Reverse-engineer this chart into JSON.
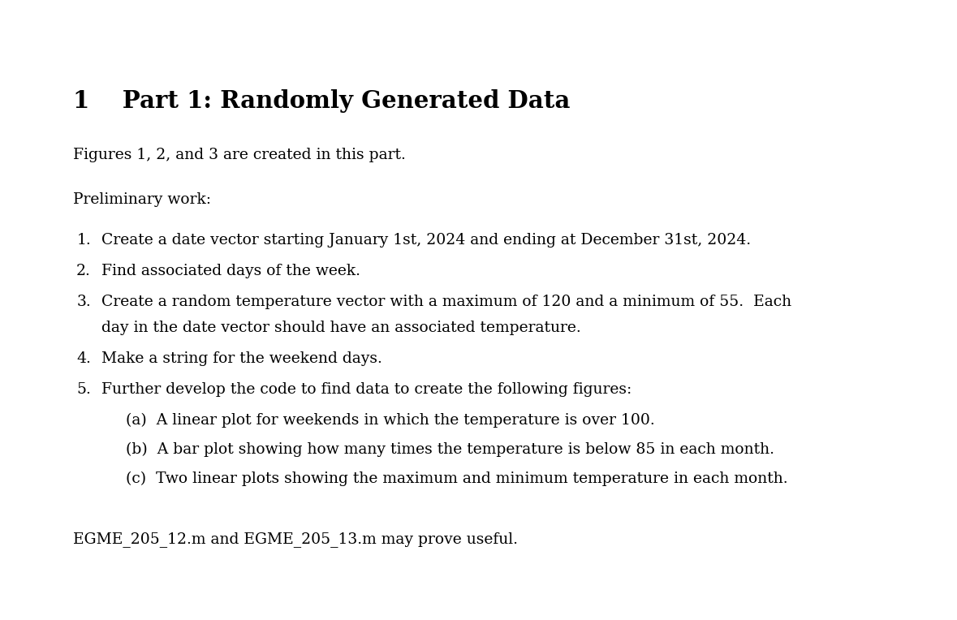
{
  "background_color": "#ffffff",
  "section_number": "1",
  "section_title": "Part 1: Randomly Generated Data",
  "intro_line": "Figures 1, 2, and 3 are created in this part.",
  "prelim_label": "Preliminary work:",
  "numbered_items": [
    "Create a date vector starting January 1st, 2024 and ending at December 31st, 2024.",
    "Find associated days of the week.",
    "Create a random temperature vector with a maximum of 120 and a minimum of 55.  Each\nday in the date vector should have an associated temperature.",
    "Make a string for the weekend days.",
    "Further develop the code to find data to create the following figures:"
  ],
  "sub_items": [
    "(a)  A linear plot for weekends in which the temperature is over 100.",
    "(b)  A bar plot showing how many times the temperature is below 85 in each month.",
    "(c)  Two linear plots showing the maximum and minimum temperature in each month."
  ],
  "footer": "EGME_205_12.m and EGME_205_13.m may prove useful.",
  "section_title_fontsize": 21,
  "body_fontsize": 13.5,
  "title_color": "#000000",
  "body_color": "#000000",
  "fig_width": 11.79,
  "fig_height": 7.64,
  "fig_dpi": 100
}
